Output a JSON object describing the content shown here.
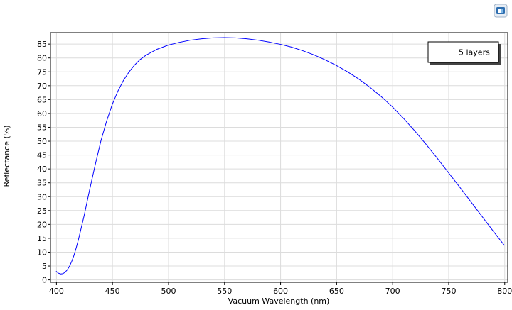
{
  "chart_data": {
    "type": "line",
    "title": "",
    "xlabel": "Vacuum Wavelength (nm)",
    "ylabel": "Reflectance (%)",
    "xlim": [
      395,
      803
    ],
    "ylim": [
      -1,
      89
    ],
    "x_ticks": [
      400,
      450,
      500,
      550,
      600,
      650,
      700,
      750,
      800
    ],
    "y_ticks": [
      0,
      5,
      10,
      15,
      20,
      25,
      30,
      35,
      40,
      45,
      50,
      55,
      60,
      65,
      70,
      75,
      80,
      85
    ],
    "grid": true,
    "legend_position": "top-right",
    "series": [
      {
        "name": "5 layers",
        "color": "#0000ff",
        "x": [
          400,
          402,
          404,
          406,
          408,
          410,
          412,
          414,
          416,
          418,
          420,
          425,
          430,
          435,
          440,
          445,
          450,
          455,
          460,
          465,
          470,
          475,
          480,
          490,
          500,
          510,
          520,
          530,
          540,
          550,
          560,
          570,
          580,
          590,
          600,
          610,
          620,
          630,
          640,
          650,
          660,
          670,
          680,
          690,
          700,
          710,
          720,
          730,
          740,
          750,
          760,
          770,
          780,
          790,
          800
        ],
        "y": [
          3.0,
          2.3,
          2.0,
          2.1,
          2.6,
          3.5,
          4.8,
          6.6,
          8.8,
          11.5,
          14.5,
          23.0,
          32.5,
          41.5,
          50.0,
          57.0,
          63.0,
          67.8,
          71.7,
          74.8,
          77.3,
          79.3,
          80.8,
          83.0,
          84.5,
          85.5,
          86.3,
          86.8,
          87.1,
          87.2,
          87.1,
          86.8,
          86.3,
          85.6,
          84.8,
          83.8,
          82.5,
          81.0,
          79.2,
          77.2,
          74.9,
          72.3,
          69.3,
          66.0,
          62.3,
          58.1,
          53.6,
          48.8,
          43.8,
          38.6,
          33.4,
          28.1,
          22.8,
          17.5,
          12.3
        ]
      }
    ]
  },
  "toolbar": {
    "icon": "comsol-logo-icon"
  }
}
